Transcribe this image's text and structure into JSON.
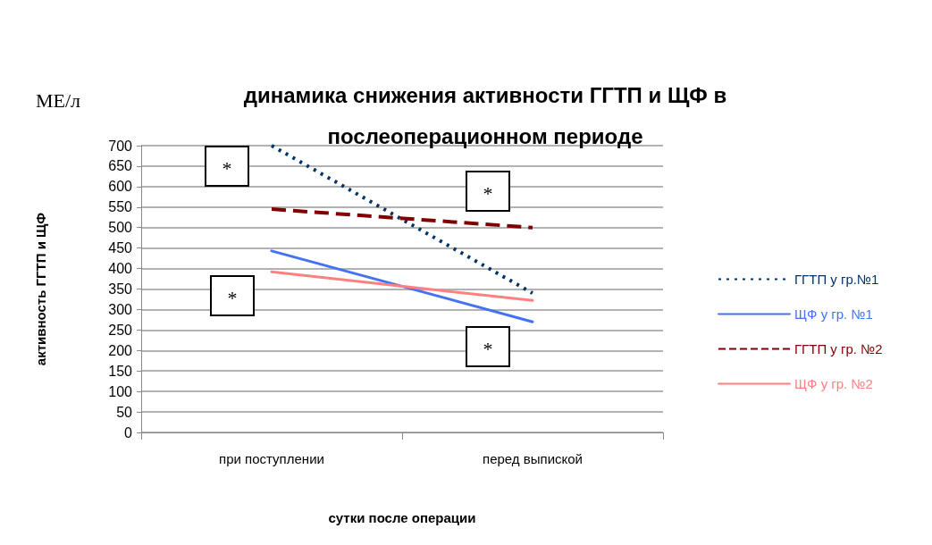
{
  "chart_data": {
    "type": "line",
    "title": "динамика снижения активности ГГТП и ЩФ в\nпослеоперационном периоде",
    "xlabel": "сутки после операции",
    "ylabel": "активность ГГТП и ЩФ",
    "categories": [
      "при поступлении",
      "перед выпиской"
    ],
    "series": [
      {
        "name": "ГГТП у гр.№1",
        "color": "#003366",
        "line_style": "dotted",
        "values": [
          700,
          340
        ]
      },
      {
        "name": "ЩФ у гр. №1",
        "color": "#4472f4",
        "line_style": "solid",
        "values": [
          443,
          270
        ]
      },
      {
        "name": "ГГТП у гр. №2",
        "color": "#800000",
        "line_style": "dashed",
        "values": [
          545,
          500
        ]
      },
      {
        "name": "ЩФ у гр. №2",
        "color": "#ff8080",
        "line_style": "solid",
        "values": [
          392,
          322
        ]
      }
    ],
    "ylim": [
      0,
      700
    ],
    "yticks": [
      0,
      50,
      100,
      150,
      200,
      250,
      300,
      350,
      400,
      450,
      500,
      550,
      600,
      650,
      700
    ],
    "grid": "y",
    "legend": "right",
    "marker": "none",
    "annotations": [
      "МЕ/л",
      "*",
      "*",
      "*",
      "*"
    ]
  }
}
